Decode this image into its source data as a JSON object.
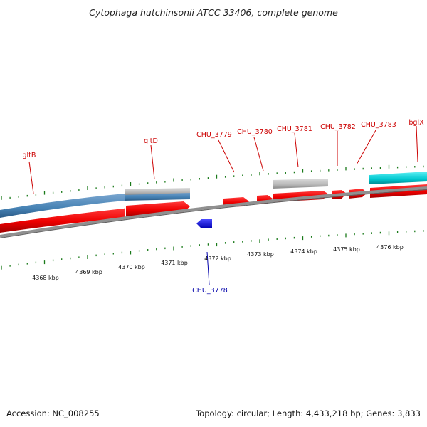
{
  "title": "Cytophaga hutchinsonii ATCC 33406, complete genome",
  "footer": {
    "accession": "Accession: NC_008255",
    "summary": "Topology: circular; Length: 4,433,218 bp; Genes: 3,833"
  },
  "colors": {
    "forward_cds": "#ff0000",
    "reverse_cds": "#0000ff",
    "forward_label": "#cc0000",
    "reverse_label": "#0000aa",
    "gene_track": "#4682b4",
    "rna_track": "#00c0c8",
    "other_track": "#b8b8b8",
    "backbone": "#808080",
    "ticks": "#1a7a1a"
  },
  "gene_labels": {
    "gltB": "gltB",
    "gltD": "gltD",
    "CHU_3779": "CHU_3779",
    "CHU_3780": "CHU_3780",
    "CHU_3781": "CHU_3781",
    "CHU_3782": "CHU_3782",
    "CHU_3783": "CHU_3783",
    "bglX": "bglX",
    "CHU_3778": "CHU_3778"
  },
  "kbp_labels": {
    "k4368": "4368 kbp",
    "k4369": "4369 kbp",
    "k4370": "4370 kbp",
    "k4371": "4371 kbp",
    "k4372": "4372 kbp",
    "k4373": "4373 kbp",
    "k4374": "4374 kbp",
    "k4375": "4375 kbp",
    "k4376": "4376 kbp"
  }
}
